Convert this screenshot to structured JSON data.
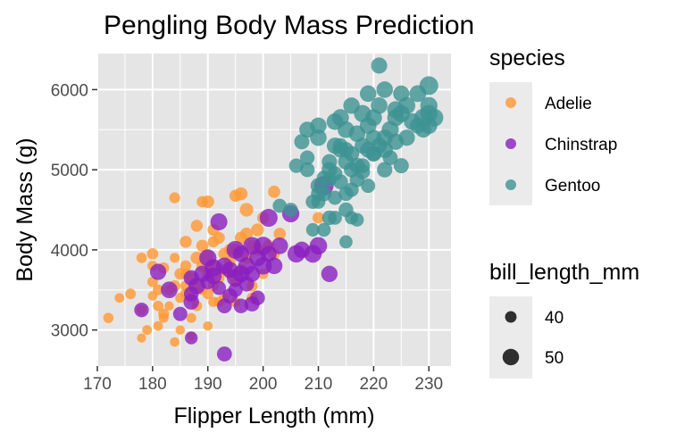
{
  "chart_data": {
    "type": "scatter",
    "title": "Pengling Body Mass Prediction",
    "xlabel": "Flipper Length (mm)",
    "ylabel": "Body Mass (g)",
    "xlim": [
      170,
      234
    ],
    "ylim": [
      2550,
      6450
    ],
    "xticks": [
      170,
      180,
      190,
      200,
      210,
      220,
      230
    ],
    "yticks": [
      3000,
      4000,
      5000,
      6000
    ],
    "grid": true,
    "panel_background": "#e5e5e5",
    "grid_color": "#ffffff",
    "point_opacity": 0.8,
    "color_legend": {
      "title": "species",
      "placement": "right-top",
      "entries": [
        {
          "label": "Adelie",
          "color": "#ff9933"
        },
        {
          "label": "Chinstrap",
          "color": "#8a1ec0"
        },
        {
          "label": "Gentoo",
          "color": "#3d9292"
        }
      ]
    },
    "size_legend": {
      "title": "bill_length_mm",
      "placement": "right-bottom",
      "entries": [
        {
          "label": "40",
          "value": 40
        },
        {
          "label": "50",
          "value": 50
        }
      ]
    },
    "series": [
      {
        "name": "Adelie",
        "color": "#ff9933",
        "points": [
          [
            172,
            3150,
            37.6
          ],
          [
            174,
            3400,
            36.2
          ],
          [
            176,
            3450,
            38.1
          ],
          [
            178,
            3250,
            36.9
          ],
          [
            178,
            3900,
            37.8
          ],
          [
            178,
            2900,
            35.2
          ],
          [
            179,
            3000,
            36.5
          ],
          [
            180,
            3600,
            38.2
          ],
          [
            180,
            3950,
            39.6
          ],
          [
            180,
            3800,
            37.7
          ],
          [
            180,
            3425,
            35.9
          ],
          [
            181,
            3500,
            38.6
          ],
          [
            181,
            3300,
            37.8
          ],
          [
            181,
            3050,
            36.4
          ],
          [
            182,
            3200,
            38.8
          ],
          [
            182,
            3775,
            39.2
          ],
          [
            182,
            3150,
            36.5
          ],
          [
            183,
            3500,
            37.3
          ],
          [
            184,
            3550,
            39.8
          ],
          [
            184,
            3900,
            36.7
          ],
          [
            184,
            2850,
            36.0
          ],
          [
            184,
            4650,
            38.9
          ],
          [
            185,
            3700,
            40.3
          ],
          [
            185,
            3400,
            37.2
          ],
          [
            185,
            3000,
            35.7
          ],
          [
            186,
            3800,
            39.1
          ],
          [
            186,
            3450,
            39.3
          ],
          [
            186,
            4100,
            41.1
          ],
          [
            186,
            3550,
            38.4
          ],
          [
            187,
            3650,
            39.5
          ],
          [
            187,
            3150,
            36.8
          ],
          [
            187,
            2925,
            35.5
          ],
          [
            187,
            3400,
            37.9
          ],
          [
            188,
            4300,
            40.9
          ],
          [
            188,
            3900,
            42.0
          ],
          [
            188,
            3300,
            38.3
          ],
          [
            188,
            3550,
            39.0
          ],
          [
            189,
            3800,
            40.7
          ],
          [
            189,
            3500,
            37.0
          ],
          [
            189,
            4050,
            41.4
          ],
          [
            190,
            3450,
            38.6
          ],
          [
            190,
            3700,
            39.7
          ],
          [
            190,
            4600,
            42.2
          ],
          [
            190,
            3925,
            40.2
          ],
          [
            190,
            3050,
            35.9
          ],
          [
            191,
            3800,
            41.1
          ],
          [
            191,
            3350,
            37.6
          ],
          [
            191,
            4250,
            40.6
          ],
          [
            191,
            3550,
            38.1
          ],
          [
            192,
            4150,
            40.8
          ],
          [
            192,
            3650,
            39.6
          ],
          [
            192,
            3350,
            37.5
          ],
          [
            193,
            3950,
            41.3
          ],
          [
            193,
            3750,
            40.3
          ],
          [
            193,
            3400,
            38.5
          ],
          [
            194,
            3700,
            39.0
          ],
          [
            194,
            4000,
            41.1
          ],
          [
            194,
            3850,
            39.8
          ],
          [
            195,
            4000,
            42.5
          ],
          [
            195,
            3600,
            38.8
          ],
          [
            195,
            3350,
            37.3
          ],
          [
            196,
            4700,
            43.2
          ],
          [
            196,
            3750,
            40.2
          ],
          [
            196,
            4150,
            41.5
          ],
          [
            197,
            4200,
            42.0
          ],
          [
            197,
            3900,
            40.5
          ],
          [
            197,
            4500,
            44.1
          ],
          [
            198,
            3550,
            39.2
          ],
          [
            198,
            4050,
            41.8
          ],
          [
            198,
            3400,
            38.6
          ],
          [
            199,
            4000,
            40.9
          ],
          [
            199,
            4250,
            42.8
          ],
          [
            200,
            3700,
            38.1
          ],
          [
            200,
            4400,
            41.0
          ],
          [
            201,
            4050,
            40.6
          ],
          [
            202,
            3950,
            39.5
          ],
          [
            202,
            4725,
            41.5
          ],
          [
            203,
            4200,
            41.3
          ],
          [
            210,
            4400,
            40.1
          ],
          [
            195,
            4675,
            41.2
          ],
          [
            191,
            4100,
            39.5
          ],
          [
            189,
            4600,
            39.6
          ],
          [
            186,
            3700,
            38.6
          ],
          [
            183,
            3300,
            35.6
          ]
        ]
      },
      {
        "name": "Chinstrap",
        "color": "#8a1ec0",
        "points": [
          [
            178,
            3250,
            46.1
          ],
          [
            181,
            3725,
            49.5
          ],
          [
            183,
            3500,
            50.2
          ],
          [
            185,
            3200,
            45.5
          ],
          [
            187,
            3650,
            47.7
          ],
          [
            187,
            2900,
            42.5
          ],
          [
            187,
            3450,
            46.6
          ],
          [
            188,
            3550,
            50.5
          ],
          [
            189,
            3700,
            49.8
          ],
          [
            190,
            3600,
            46.4
          ],
          [
            190,
            3900,
            51.3
          ],
          [
            191,
            3775,
            52.0
          ],
          [
            192,
            3525,
            45.2
          ],
          [
            192,
            4350,
            50.9
          ],
          [
            193,
            3300,
            46.5
          ],
          [
            193,
            3800,
            50.3
          ],
          [
            193,
            2700,
            46.9
          ],
          [
            194,
            3750,
            49.2
          ],
          [
            194,
            3425,
            47.0
          ],
          [
            195,
            3650,
            51.5
          ],
          [
            195,
            4000,
            52.7
          ],
          [
            195,
            3500,
            45.6
          ],
          [
            196,
            3700,
            50.7
          ],
          [
            196,
            3950,
            49.7
          ],
          [
            197,
            3575,
            47.5
          ],
          [
            197,
            3800,
            50.8
          ],
          [
            198,
            3700,
            48.7
          ],
          [
            198,
            4050,
            52.2
          ],
          [
            199,
            3400,
            46.3
          ],
          [
            199,
            3900,
            50.6
          ],
          [
            200,
            3800,
            51.7
          ],
          [
            200,
            4050,
            53.5
          ],
          [
            201,
            3950,
            49.0
          ],
          [
            201,
            4400,
            52.8
          ],
          [
            202,
            3800,
            50.1
          ],
          [
            203,
            4050,
            50.4
          ],
          [
            205,
            4450,
            51.4
          ],
          [
            207,
            4000,
            49.8
          ],
          [
            210,
            4050,
            52.0
          ],
          [
            211,
            4800,
            55.8
          ],
          [
            212,
            3700,
            49.6
          ],
          [
            196,
            3300,
            46.2
          ],
          [
            191,
            3675,
            50.0
          ],
          [
            187,
            3350,
            48.1
          ],
          [
            198,
            3325,
            47.2
          ],
          [
            206,
            3950,
            51.9
          ],
          [
            209,
            3950,
            52.3
          ]
        ]
      },
      {
        "name": "Gentoo",
        "color": "#3d9292",
        "points": [
          [
            203,
            4550,
            44.9
          ],
          [
            205,
            4500,
            45.2
          ],
          [
            206,
            5050,
            45.8
          ],
          [
            207,
            5350,
            47.3
          ],
          [
            208,
            5150,
            46.0
          ],
          [
            208,
            5500,
            49.1
          ],
          [
            209,
            4600,
            45.5
          ],
          [
            209,
            4250,
            43.8
          ],
          [
            210,
            4600,
            45.1
          ],
          [
            210,
            4700,
            46.5
          ],
          [
            210,
            4800,
            48.2
          ],
          [
            210,
            5400,
            50.0
          ],
          [
            211,
            4250,
            44.5
          ],
          [
            211,
            4700,
            47.2
          ],
          [
            211,
            4900,
            45.5
          ],
          [
            212,
            4400,
            46.1
          ],
          [
            212,
            5000,
            48.4
          ],
          [
            212,
            5100,
            47.6
          ],
          [
            213,
            4650,
            45.2
          ],
          [
            213,
            4950,
            46.7
          ],
          [
            213,
            5300,
            49.5
          ],
          [
            213,
            4400,
            44.9
          ],
          [
            214,
            4850,
            46.8
          ],
          [
            214,
            5250,
            48.6
          ],
          [
            214,
            5650,
            50.8
          ],
          [
            215,
            4700,
            46.0
          ],
          [
            215,
            5100,
            48.7
          ],
          [
            215,
            5250,
            47.4
          ],
          [
            215,
            5500,
            50.2
          ],
          [
            215,
            4500,
            46.2
          ],
          [
            216,
            4750,
            45.7
          ],
          [
            216,
            5000,
            47.5
          ],
          [
            216,
            5800,
            49.8
          ],
          [
            216,
            4400,
            43.5
          ],
          [
            217,
            5050,
            48.2
          ],
          [
            217,
            5450,
            50.1
          ],
          [
            217,
            4875,
            46.3
          ],
          [
            218,
            5300,
            48.5
          ],
          [
            218,
            5700,
            51.3
          ],
          [
            218,
            4975,
            46.9
          ],
          [
            219,
            5250,
            49.0
          ],
          [
            219,
            5550,
            50.4
          ],
          [
            219,
            5950,
            49.9
          ],
          [
            220,
            5200,
            47.6
          ],
          [
            220,
            5650,
            50.5
          ],
          [
            220,
            5400,
            48.4
          ],
          [
            221,
            5300,
            49.1
          ],
          [
            221,
            6300,
            49.2
          ],
          [
            221,
            5800,
            50.1
          ],
          [
            222,
            5000,
            47.8
          ],
          [
            222,
            5400,
            49.4
          ],
          [
            222,
            6000,
            50.0
          ],
          [
            223,
            5500,
            51.1
          ],
          [
            223,
            5150,
            46.8
          ],
          [
            224,
            5350,
            49.6
          ],
          [
            224,
            5750,
            50.8
          ],
          [
            225,
            5700,
            51.5
          ],
          [
            225,
            5050,
            47.2
          ],
          [
            225,
            5950,
            49.3
          ],
          [
            226,
            5400,
            49.5
          ],
          [
            226,
            5800,
            51.1
          ],
          [
            227,
            5600,
            50.5
          ],
          [
            228,
            5550,
            48.9
          ],
          [
            228,
            5950,
            50.6
          ],
          [
            229,
            5650,
            53.4
          ],
          [
            229,
            5500,
            49.0
          ],
          [
            230,
            5700,
            52.1
          ],
          [
            230,
            6050,
            54.3
          ],
          [
            230,
            5550,
            50.4
          ],
          [
            230,
            5800,
            51.5
          ],
          [
            231,
            5650,
            52.5
          ],
          [
            215,
            4100,
            43.2
          ],
          [
            212,
            4875,
            45.3
          ],
          [
            217,
            4375,
            44.0
          ],
          [
            214,
            5300,
            47.0
          ],
          [
            220,
            5200,
            48.1
          ],
          [
            208,
            5000,
            46.4
          ],
          [
            219,
            4800,
            45.4
          ],
          [
            210,
            5550,
            49.6
          ],
          [
            222,
            5250,
            49.8
          ],
          [
            216,
            5200,
            47.7
          ],
          [
            213,
            5600,
            50.2
          ],
          [
            224,
            5650,
            51.0
          ],
          [
            218,
            5050,
            46.6
          ]
        ]
      }
    ]
  }
}
